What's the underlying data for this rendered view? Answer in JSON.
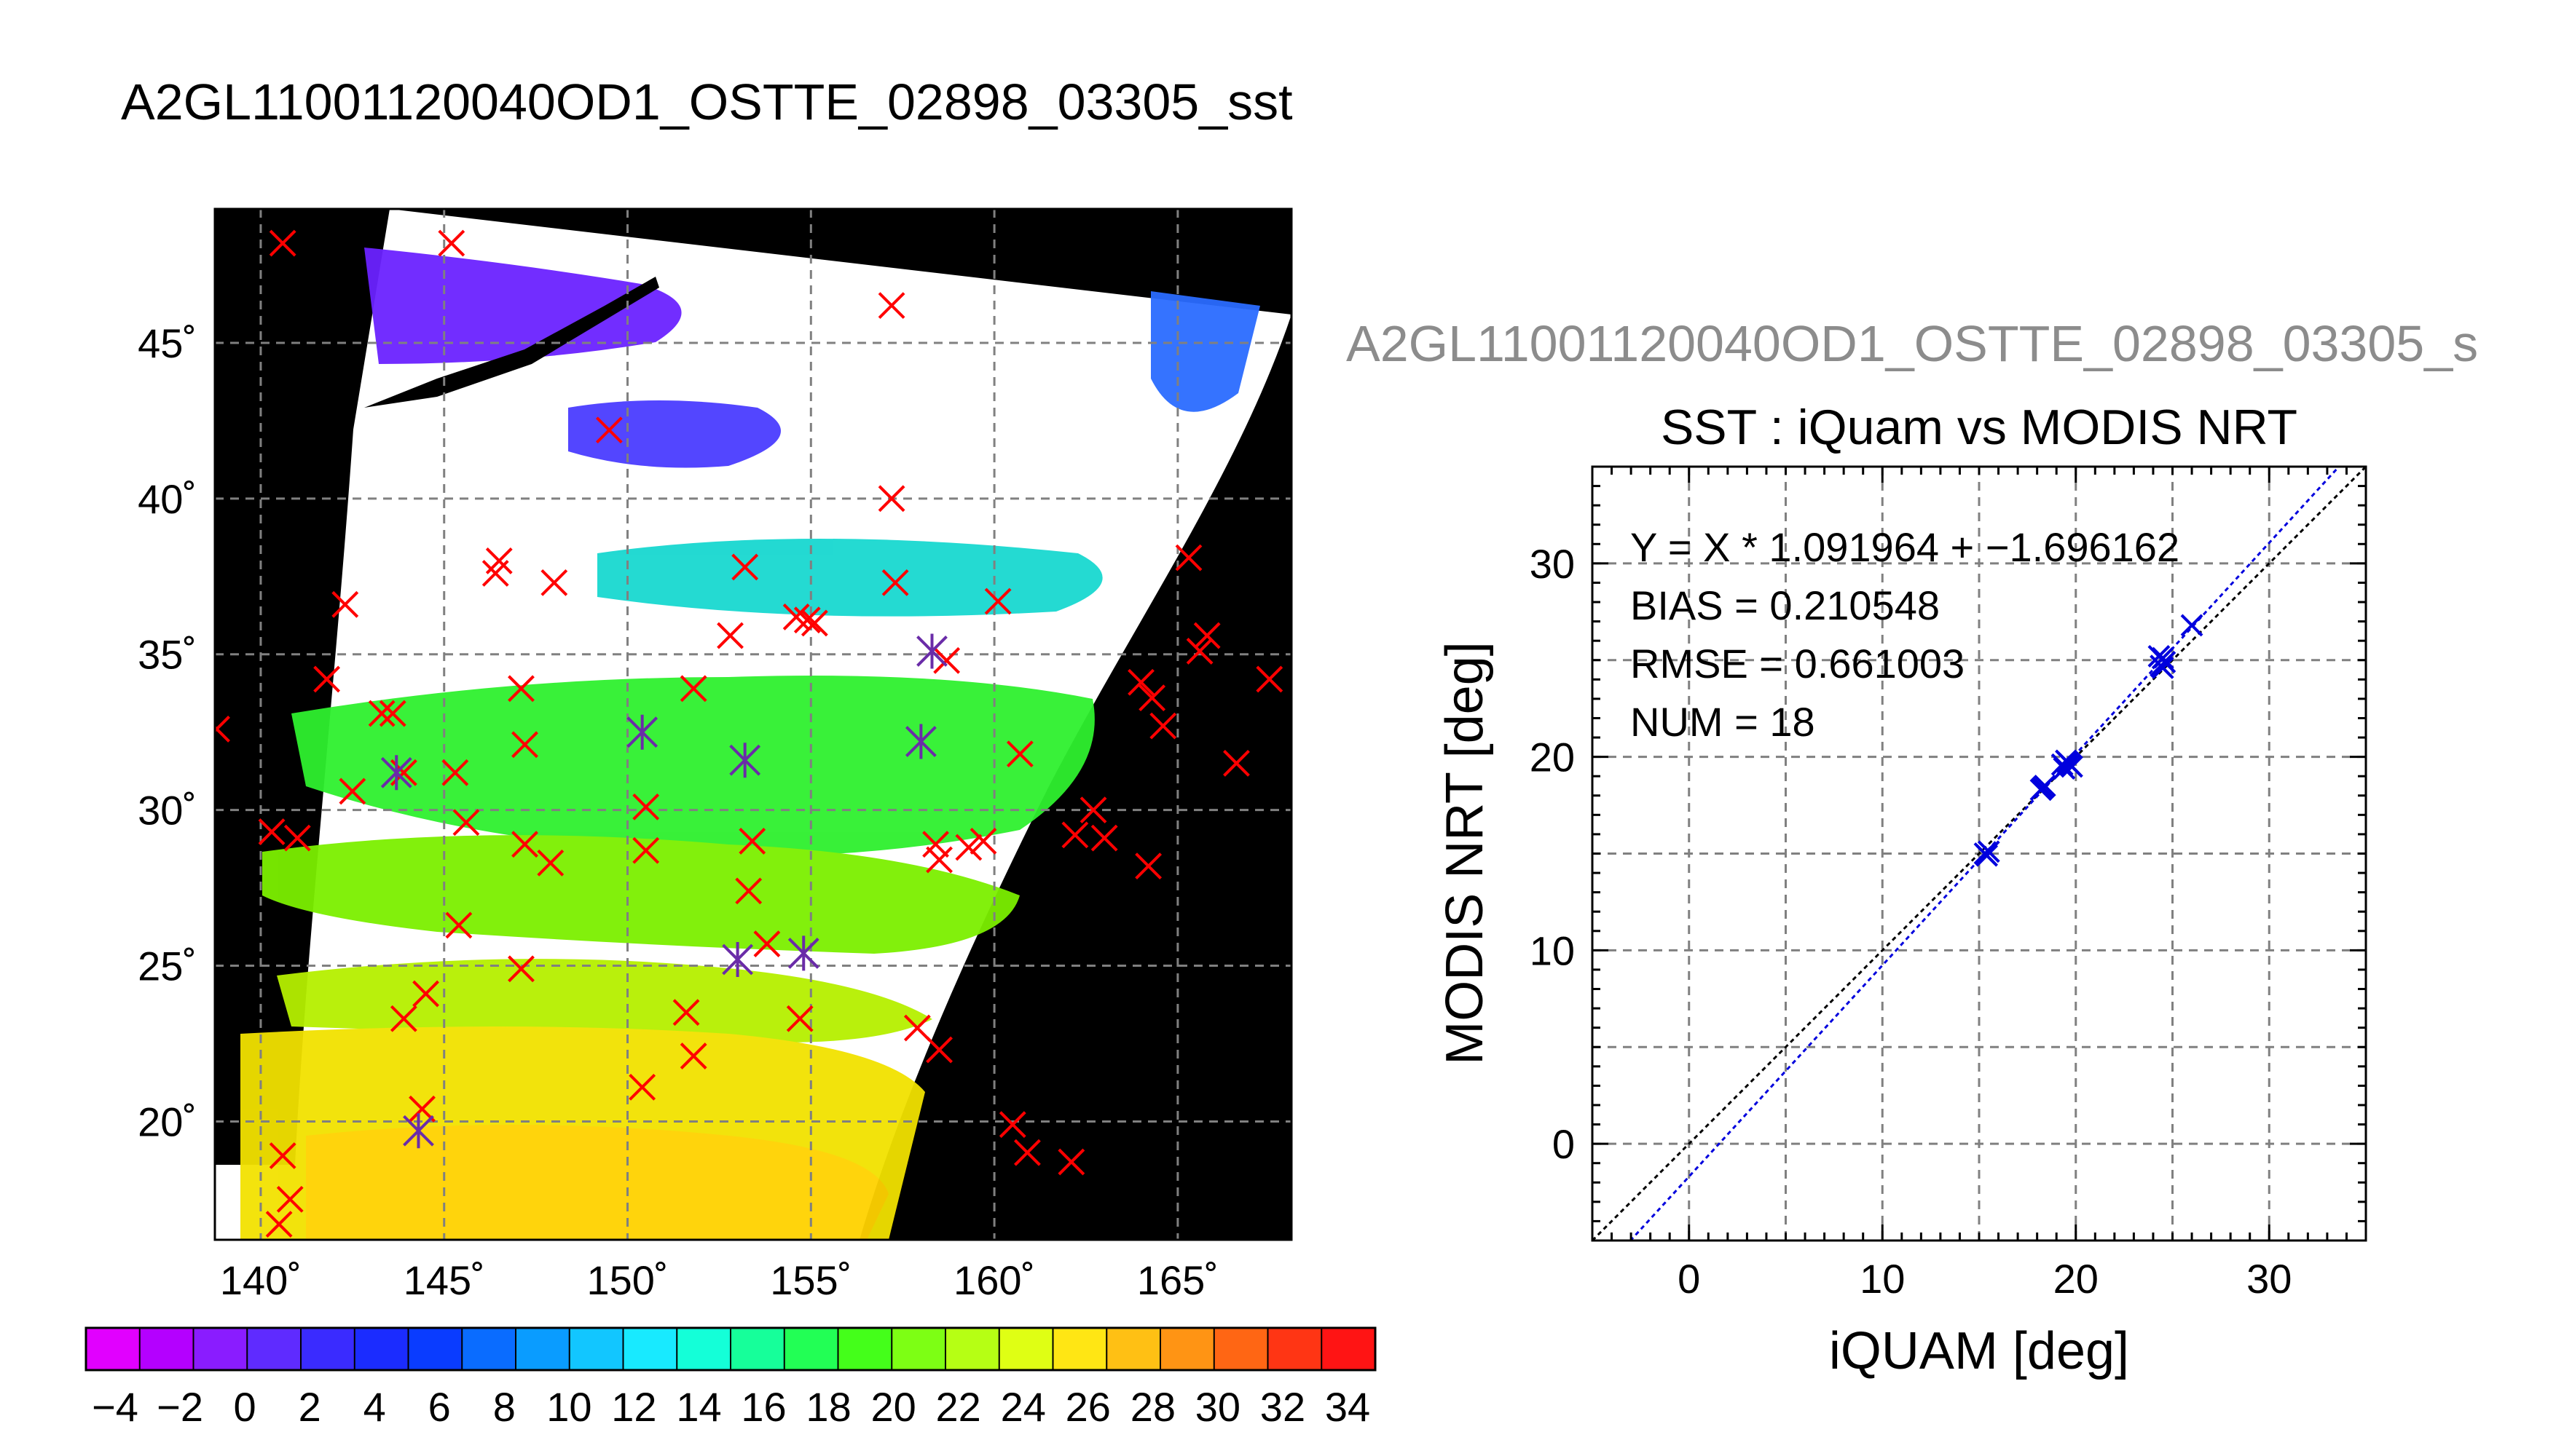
{
  "main_title": "A2GL11001120040OD1_OSTTE_02898_03305_sst",
  "map": {
    "lon_ticks": [
      "140˚",
      "145˚",
      "150˚",
      "155˚",
      "160˚",
      "165˚"
    ],
    "lat_ticks": [
      "20˚",
      "25˚",
      "30˚",
      "35˚",
      "40˚",
      "45˚"
    ]
  },
  "colorbar": {
    "labels": [
      "−4",
      "−2",
      "0",
      "2",
      "4",
      "6",
      "8",
      "10",
      "12",
      "14",
      "16",
      "18",
      "20",
      "22",
      "24",
      "26",
      "28",
      "30",
      "32",
      "34"
    ],
    "colors": [
      "#e100ff",
      "#b400ff",
      "#8a1cff",
      "#5f2bff",
      "#3a2bff",
      "#1b2cff",
      "#0a3cff",
      "#0a6cff",
      "#0a9cff",
      "#12c6ff",
      "#18eaff",
      "#14ffd8",
      "#16ff9a",
      "#22ff55",
      "#44ff1a",
      "#7dff14",
      "#b6ff14",
      "#dfff14",
      "#ffe614",
      "#ffc014",
      "#ff9414",
      "#ff6614",
      "#ff3514",
      "#ff1414"
    ]
  },
  "scatter_header": "A2GL11001120040OD1_OSTTE_02898_03305_s",
  "chart_data": {
    "type": "scatter",
    "title": "SST : iQuam vs MODIS NRT",
    "xlabel": "iQUAM [deg]",
    "ylabel": "MODIS NRT [deg]",
    "xlim": [
      -5,
      35
    ],
    "ylim": [
      -5,
      35
    ],
    "xticks": [
      "0",
      "10",
      "20",
      "30"
    ],
    "yticks": [
      "0",
      "10",
      "20",
      "30"
    ],
    "grid": true,
    "stats": {
      "fit": "Y = X * 1.091964 + −1.696162",
      "bias": "BIAS = 0.210548",
      "rmse": "RMSE = 0.661003",
      "num": "NUM = 18"
    },
    "fit_line": {
      "slope": 1.091964,
      "intercept": -1.696162,
      "color": "#0000dd"
    },
    "identity_line_color": "#000000",
    "marker_color": "#0000dd",
    "points": [
      {
        "x": 15.4,
        "y": 14.9
      },
      {
        "x": 15.5,
        "y": 15.1
      },
      {
        "x": 18.3,
        "y": 18.4
      },
      {
        "x": 18.4,
        "y": 18.5
      },
      {
        "x": 19.3,
        "y": 19.6
      },
      {
        "x": 19.6,
        "y": 19.7
      },
      {
        "x": 19.8,
        "y": 19.5
      },
      {
        "x": 19.4,
        "y": 19.4
      },
      {
        "x": 24.4,
        "y": 24.7
      },
      {
        "x": 24.5,
        "y": 25.1
      },
      {
        "x": 24.6,
        "y": 24.9
      },
      {
        "x": 24.5,
        "y": 24.6
      },
      {
        "x": 26.0,
        "y": 26.8
      },
      {
        "x": 15.3,
        "y": 15.0
      },
      {
        "x": 18.2,
        "y": 18.3
      },
      {
        "x": 19.5,
        "y": 19.8
      },
      {
        "x": 24.3,
        "y": 25.2
      },
      {
        "x": 19.7,
        "y": 19.6
      }
    ]
  }
}
